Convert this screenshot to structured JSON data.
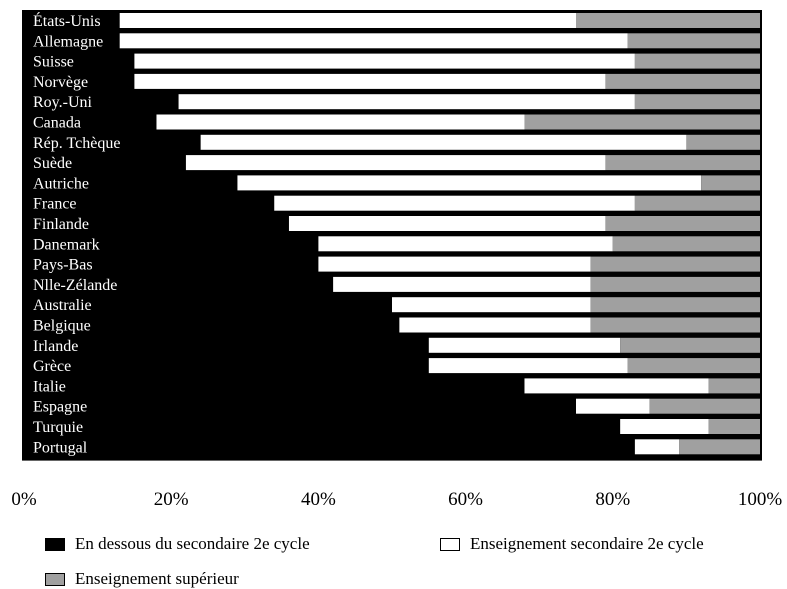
{
  "chart_data": {
    "type": "bar",
    "orientation": "horizontal",
    "stacked": true,
    "categories": [
      "États-Unis",
      "Allemagne",
      "Suisse",
      "Norvège",
      "Roy.-Uni",
      "Canada",
      "Rép. Tchèque",
      "Suède",
      "Autriche",
      "France",
      "Finlande",
      "Danemark",
      "Pays-Bas",
      "Nlle-Zélande",
      "Australie",
      "Belgique",
      "Irlande",
      "Grèce",
      "Italie",
      "Espagne",
      "Turquie",
      "Portugal"
    ],
    "series": [
      {
        "name": "En dessous du secondaire 2e cycle",
        "color": "#000000",
        "values": [
          13,
          13,
          15,
          15,
          21,
          18,
          24,
          22,
          29,
          34,
          36,
          40,
          40,
          42,
          50,
          51,
          55,
          55,
          68,
          75,
          81,
          83
        ]
      },
      {
        "name": "Enseignement secondaire 2e cycle",
        "color": "#ffffff",
        "values": [
          62,
          69,
          68,
          64,
          62,
          50,
          66,
          57,
          63,
          49,
          43,
          40,
          37,
          35,
          27,
          26,
          26,
          27,
          25,
          10,
          12,
          6
        ]
      },
      {
        "name": "Enseignement supérieur",
        "color": "#a0a0a0",
        "values": [
          25,
          18,
          17,
          21,
          17,
          32,
          10,
          21,
          8,
          17,
          21,
          20,
          23,
          23,
          23,
          23,
          19,
          18,
          7,
          15,
          7,
          11
        ]
      }
    ],
    "x_ticks": [
      "0%",
      "20%",
      "40%",
      "60%",
      "80%",
      "100%"
    ],
    "xlim": [
      0,
      100
    ],
    "legend_position": "bottom"
  }
}
